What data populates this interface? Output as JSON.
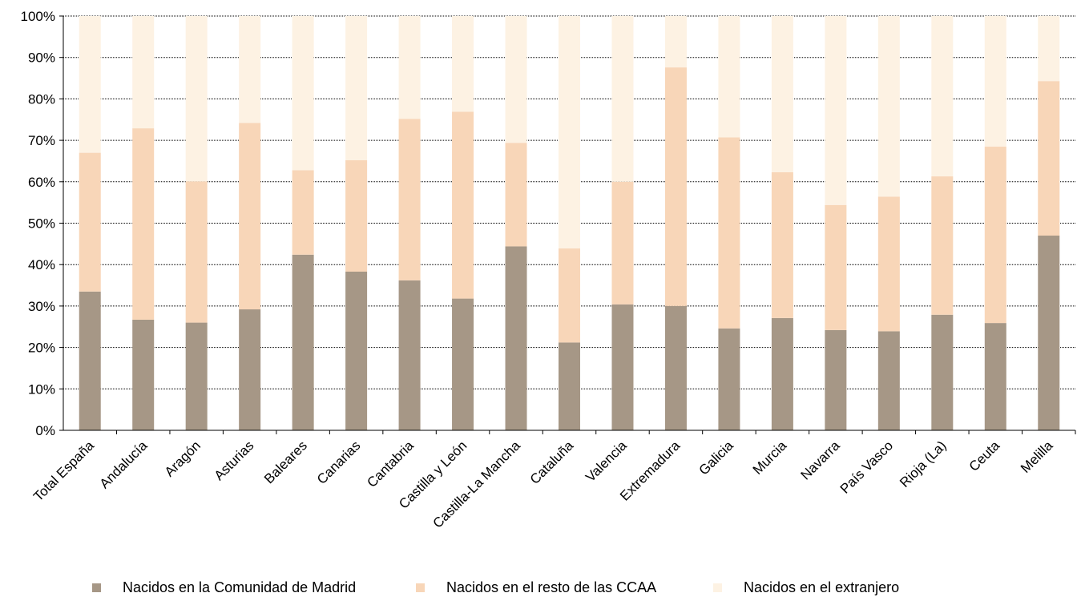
{
  "chart_data": {
    "type": "bar",
    "stacked": true,
    "categories": [
      "Total España",
      "Andalucía",
      "Aragón",
      "Asturias",
      "Baleares",
      "Canarias",
      "Cantabria",
      "Castilla y León",
      "Castilla-La Mancha",
      "Cataluña",
      "Valencia",
      "Extremadura",
      "Galicia",
      "Murcia",
      "Navarra",
      "País Vasco",
      "Rioja (La)",
      "Ceuta",
      "Melilla"
    ],
    "series": [
      {
        "name": "Nacidos en la Comunidad de Madrid",
        "color": "#a69786",
        "values": [
          33.5,
          26.7,
          26.0,
          29.2,
          42.4,
          38.3,
          36.2,
          31.8,
          44.4,
          21.2,
          30.4,
          30.0,
          24.6,
          27.1,
          24.2,
          23.9,
          27.9,
          25.9,
          47.0
        ]
      },
      {
        "name": "Nacidos en el resto de las CCAA",
        "color": "#f8d6b8",
        "values": [
          33.5,
          46.2,
          34.1,
          45.0,
          20.4,
          26.9,
          39.0,
          45.1,
          25.0,
          22.7,
          29.6,
          57.6,
          46.1,
          35.2,
          30.2,
          32.5,
          33.4,
          42.6,
          37.3
        ]
      },
      {
        "name": "Nacidos en el extranjero",
        "color": "#fdf2e3",
        "values": [
          33.0,
          27.1,
          39.9,
          25.8,
          37.2,
          34.8,
          24.8,
          23.1,
          30.6,
          56.1,
          40.0,
          12.4,
          29.3,
          37.7,
          45.6,
          43.6,
          38.7,
          31.5,
          15.7
        ]
      }
    ],
    "y_ticks": [
      "0%",
      "10%",
      "20%",
      "30%",
      "40%",
      "50%",
      "60%",
      "70%",
      "80%",
      "90%",
      "100%"
    ],
    "ylim": [
      0,
      100
    ],
    "grid": true,
    "legend_position": "bottom"
  }
}
